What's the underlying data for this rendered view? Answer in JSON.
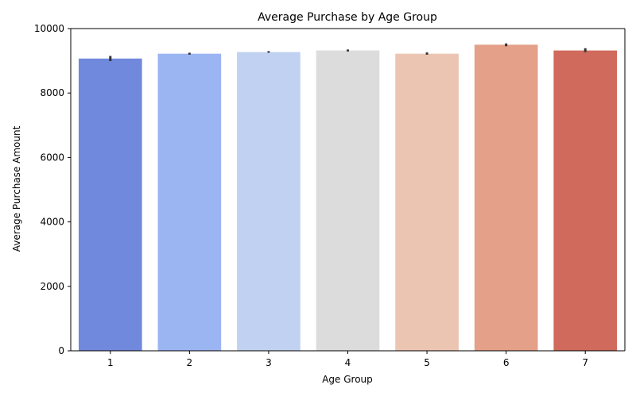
{
  "chart_data": {
    "type": "bar",
    "title": "Average Purchase by Age Group",
    "xlabel": "Age Group",
    "ylabel": "Average Purchase Amount",
    "categories": [
      "1",
      "2",
      "3",
      "4",
      "5",
      "6",
      "7"
    ],
    "values": [
      9070,
      9220,
      9270,
      9320,
      9220,
      9500,
      9320
    ],
    "error_low": [
      8990,
      9190,
      9250,
      9290,
      9190,
      9450,
      9270
    ],
    "error_high": [
      9150,
      9250,
      9300,
      9350,
      9260,
      9540,
      9390
    ],
    "colors": [
      "#7089dd",
      "#9bb5f3",
      "#c1d1f1",
      "#dcdcdc",
      "#ecc5b2",
      "#e5a089",
      "#cf6a5c"
    ],
    "error_bar_color": "#333333",
    "ylim": [
      0,
      10000
    ],
    "yticks": [
      0,
      2000,
      4000,
      6000,
      8000,
      10000
    ],
    "grid": false,
    "legend": "none"
  }
}
